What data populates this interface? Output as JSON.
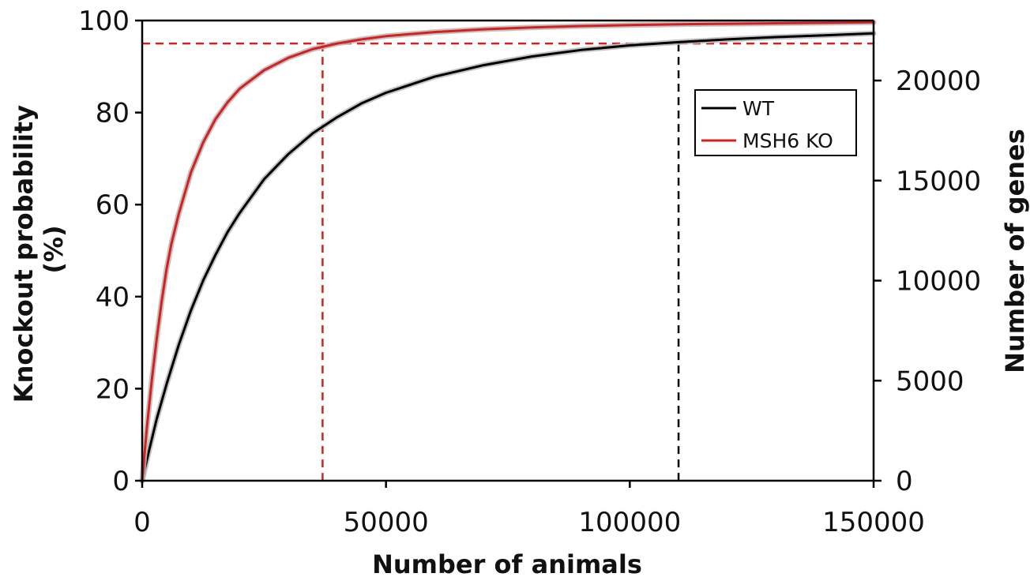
{
  "chart_data": {
    "type": "line",
    "xlabel": "Number of animals",
    "ylabel_lines": [
      "Knockout probability",
      "(%)"
    ],
    "y2label": "Number of genes",
    "xlim": [
      0,
      150000
    ],
    "ylim": [
      0,
      100
    ],
    "y2lim": [
      0,
      23000
    ],
    "x_ticks": [
      0,
      50000,
      100000,
      150000
    ],
    "y_ticks": [
      0,
      20,
      40,
      60,
      80,
      100
    ],
    "y2_ticks": [
      0,
      5000,
      10000,
      15000,
      20000
    ],
    "grid": false,
    "legend_position": "top-right",
    "series": [
      {
        "name": "WT",
        "color": "#000000",
        "x": [
          0,
          1500,
          3000,
          5000,
          7500,
          10000,
          12500,
          15000,
          17500,
          20000,
          25000,
          30000,
          35000,
          40000,
          45000,
          50000,
          60000,
          70000,
          80000,
          90000,
          100000,
          110000,
          120000,
          130000,
          140000,
          150000
        ],
        "y": [
          0,
          7,
          13.5,
          21,
          29.5,
          37,
          43.5,
          49,
          54,
          58.2,
          65.5,
          71,
          75.5,
          79,
          82,
          84.3,
          87.8,
          90.3,
          92.2,
          93.6,
          94.6,
          95.3,
          95.9,
          96.4,
          96.8,
          97.2
        ]
      },
      {
        "name": "MSH6 KO",
        "color": "#d62020",
        "x": [
          0,
          1000,
          2000,
          3000,
          4000,
          5000,
          6000,
          7500,
          10000,
          12500,
          15000,
          17500,
          20000,
          25000,
          30000,
          35000,
          40000,
          45000,
          50000,
          60000,
          70000,
          80000,
          90000,
          100000,
          110000,
          120000,
          130000,
          140000,
          150000
        ],
        "y": [
          0,
          12,
          22,
          31,
          39,
          46,
          51.5,
          58,
          67,
          73.5,
          78.5,
          82.2,
          85.2,
          89.2,
          91.9,
          93.8,
          95.0,
          95.9,
          96.6,
          97.5,
          98.1,
          98.5,
          98.8,
          99.0,
          99.2,
          99.3,
          99.4,
          99.5,
          99.6
        ]
      }
    ],
    "reference_lines": {
      "threshold_y": 95,
      "threshold_color": "#d62020",
      "ko_x": 37000,
      "ko_color": "#d62020",
      "wt_x": 110000,
      "wt_color": "#000000"
    },
    "colors": {
      "axis": "#000000",
      "band": "#b8b8b8"
    }
  }
}
